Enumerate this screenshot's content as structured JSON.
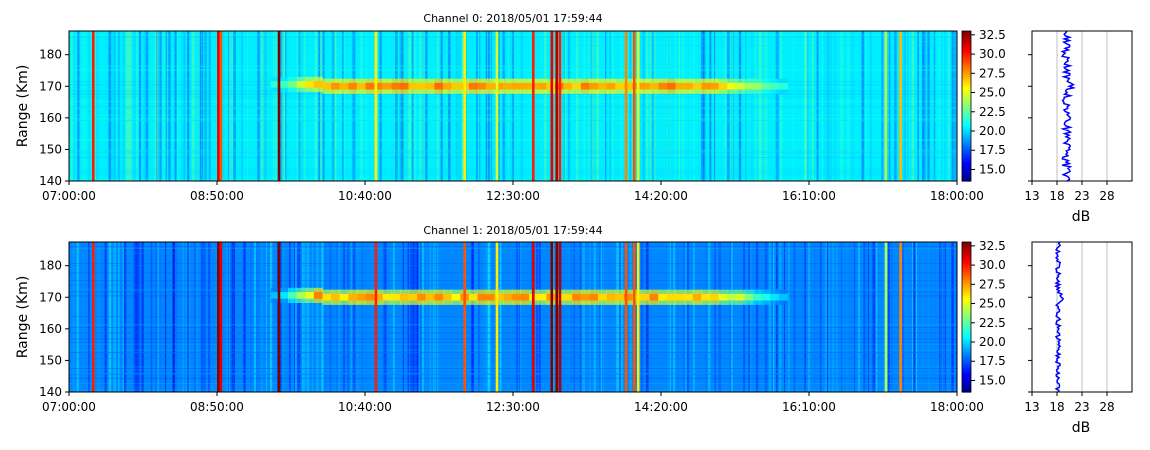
{
  "chart_data": [
    {
      "type": "heatmap",
      "title": "Channel 0: 2018/05/01 17:59:44",
      "ylabel": "Range (Km)",
      "x_ticks": [
        "07:00:00",
        "08:50:00",
        "10:40:00",
        "12:30:00",
        "14:20:00",
        "16:10:00",
        "18:00:00"
      ],
      "x_range_hours": [
        7.0,
        18.0
      ],
      "y_ticks": [
        140,
        150,
        160,
        170,
        180
      ],
      "y_range": [
        140,
        187.5
      ],
      "colorbar_ticks": [
        "15.0",
        "17.5",
        "20.0",
        "22.5",
        "25.0",
        "27.5",
        "30.0",
        "32.5"
      ],
      "color_range": [
        13.5,
        33.0
      ],
      "colormap": "jet",
      "background_level_db": 20.5,
      "echo_layer": {
        "start_hour": 9.5,
        "end_hour": 15.9,
        "center_km": 170,
        "width_km": 1.5,
        "peak_db": 27.5
      },
      "vertical_lines": [
        {
          "hour": 7.3,
          "db": 30
        },
        {
          "hour": 8.85,
          "db": 31
        },
        {
          "hour": 8.88,
          "db": 29
        },
        {
          "hour": 9.6,
          "db": 33
        },
        {
          "hour": 10.8,
          "db": 26
        },
        {
          "hour": 11.9,
          "db": 26
        },
        {
          "hour": 12.3,
          "db": 25
        },
        {
          "hour": 12.75,
          "db": 30
        },
        {
          "hour": 12.98,
          "db": 31
        },
        {
          "hour": 13.04,
          "db": 32
        },
        {
          "hour": 13.08,
          "db": 30
        },
        {
          "hour": 13.9,
          "db": 28
        },
        {
          "hour": 14.0,
          "db": 29
        },
        {
          "hour": 14.05,
          "db": 25
        },
        {
          "hour": 17.12,
          "db": 24
        },
        {
          "hour": 17.3,
          "db": 27
        }
      ],
      "profile": {
        "xlabel": "dB",
        "x_ticks": [
          13,
          18,
          23,
          28
        ],
        "x_range": [
          13,
          33
        ],
        "mean_db": 19.8,
        "color": "#0000ff"
      }
    },
    {
      "type": "heatmap",
      "title": "Channel 1: 2018/05/01 17:59:44",
      "ylabel": "Range (Km)",
      "x_ticks": [
        "07:00:00",
        "08:50:00",
        "10:40:00",
        "12:30:00",
        "14:20:00",
        "16:10:00",
        "18:00:00"
      ],
      "x_range_hours": [
        7.0,
        18.0
      ],
      "y_ticks": [
        140,
        150,
        160,
        170,
        180
      ],
      "y_range": [
        140,
        187.5
      ],
      "colorbar_ticks": [
        "15.0",
        "17.5",
        "20.0",
        "22.5",
        "25.0",
        "27.5",
        "30.0",
        "32.5"
      ],
      "color_range": [
        13.5,
        33.0
      ],
      "colormap": "jet",
      "background_level_db": 18.5,
      "echo_layer": {
        "start_hour": 9.5,
        "end_hour": 15.9,
        "center_km": 170,
        "width_km": 1.5,
        "peak_db": 27.0
      },
      "vertical_lines": [
        {
          "hour": 7.3,
          "db": 30
        },
        {
          "hour": 8.85,
          "db": 33
        },
        {
          "hour": 8.88,
          "db": 31
        },
        {
          "hour": 9.6,
          "db": 33
        },
        {
          "hour": 10.8,
          "db": 30
        },
        {
          "hour": 11.9,
          "db": 29
        },
        {
          "hour": 12.3,
          "db": 26
        },
        {
          "hour": 12.75,
          "db": 31
        },
        {
          "hour": 12.98,
          "db": 33
        },
        {
          "hour": 13.04,
          "db": 33
        },
        {
          "hour": 13.08,
          "db": 32
        },
        {
          "hour": 13.9,
          "db": 29
        },
        {
          "hour": 14.0,
          "db": 29
        },
        {
          "hour": 14.05,
          "db": 26
        },
        {
          "hour": 17.12,
          "db": 24
        },
        {
          "hour": 17.3,
          "db": 28
        }
      ],
      "profile": {
        "xlabel": "dB",
        "x_ticks": [
          13,
          18,
          23,
          28
        ],
        "x_range": [
          13,
          33
        ],
        "mean_db": 18.2,
        "color": "#0000ff"
      }
    }
  ]
}
